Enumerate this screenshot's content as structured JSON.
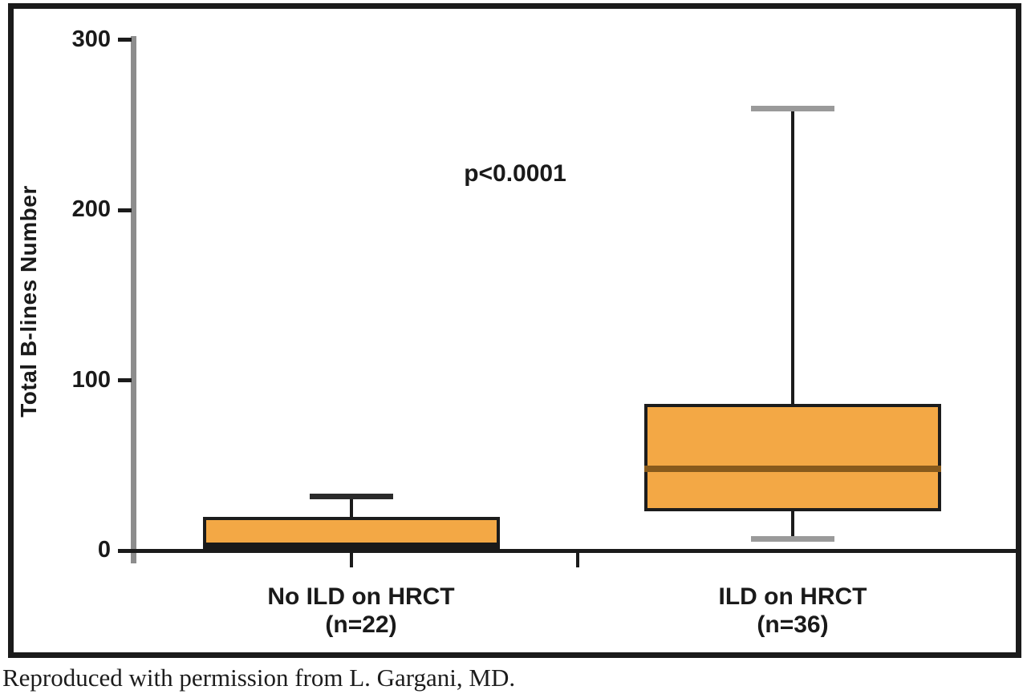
{
  "caption": "Reproduced with permission from L. Gargani, MD.",
  "chart_data": {
    "type": "boxplot",
    "title": "",
    "ylabel": "Total B-lines Number",
    "xlabel": "",
    "ylim": [
      0,
      300
    ],
    "yticks": [
      0,
      100,
      200,
      300
    ],
    "grid": false,
    "annotation": "p<0.0001",
    "series": [
      {
        "category": "No ILD on HRCT",
        "n_label": "(n=22)",
        "whisker_low": null,
        "q1": 0,
        "median": 2,
        "q3": 20,
        "whisker_high": 32
      },
      {
        "category": "ILD on HRCT",
        "n_label": "(n=36)",
        "whisker_low": 7,
        "q1": 23,
        "median": 48,
        "q3": 86,
        "whisker_high": 260
      }
    ],
    "colors": {
      "box_fill": "#F3A845",
      "box_border": "#1C1C1C",
      "median_no_ild": "#1A1A1A",
      "median_ild": "#875A1C",
      "whisker_cap_gray": "#9A9A9A",
      "whisker_cap_dark": "#2B2B2B",
      "axis_gray": "#8D8D8D",
      "axis_black": "#1B1B1B",
      "text": "#1A1A1A"
    }
  }
}
